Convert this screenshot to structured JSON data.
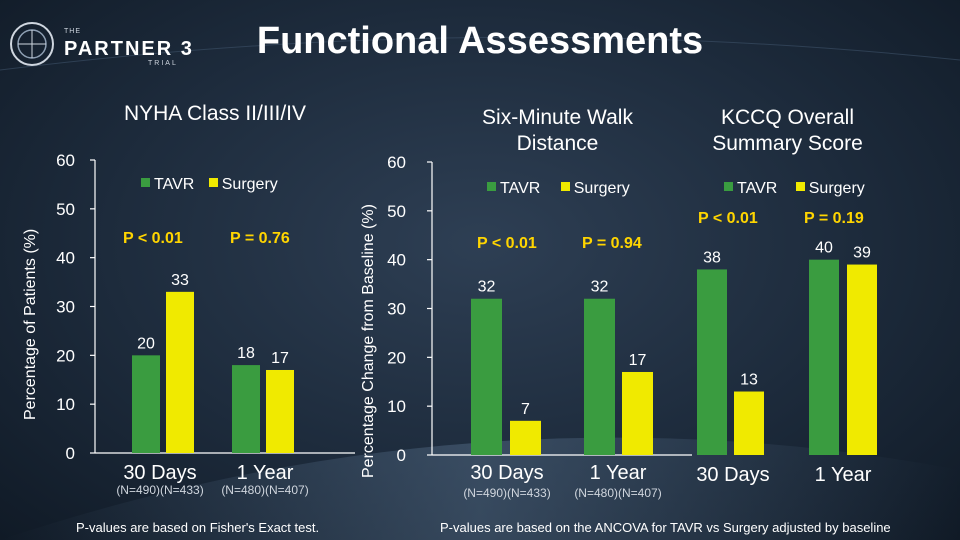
{
  "logo": {
    "line1": "THE",
    "line2": "PARTNER 3",
    "line3": "TRIAL"
  },
  "title": "Functional Assessments",
  "colors": {
    "tavr": "#3a9c40",
    "surgery": "#f0ea00",
    "pvalue": "#ffd500",
    "axis": "#ffffff"
  },
  "legend": {
    "tavr": "TAVR",
    "surgery": "Surgery"
  },
  "footnotes": {
    "left": "P-values are based on Fisher's Exact test.",
    "right": "P-values are based on the ANCOVA for TAVR vs Surgery adjusted by baseline"
  },
  "chart_data": [
    {
      "type": "bar",
      "title": "NYHA Class II/III/IV",
      "ylabel": "Percentage of Patients (%)",
      "ylim": [
        0,
        60
      ],
      "yticks": [
        0,
        10,
        20,
        30,
        40,
        50,
        60
      ],
      "categories": [
        "30 Days",
        "1 Year"
      ],
      "category_sublabels": [
        "(N=490)(N=433)",
        "(N=480)(N=407)"
      ],
      "series": [
        {
          "name": "TAVR",
          "values": [
            20,
            18
          ],
          "labels": [
            "20",
            "18"
          ]
        },
        {
          "name": "Surgery",
          "values": [
            33,
            17
          ],
          "labels": [
            "33",
            "17"
          ]
        }
      ],
      "pvalues": [
        "P < 0.01",
        "P = 0.76"
      ],
      "legend": "top"
    },
    {
      "type": "bar",
      "title": "Six-Minute Walk Distance",
      "ylabel": "Percentage Change from Baseline (%)",
      "ylim": [
        0,
        60
      ],
      "yticks": [
        0,
        10,
        20,
        30,
        40,
        50,
        60
      ],
      "categories": [
        "30 Days",
        "1 Year"
      ],
      "category_sublabels": [
        "(N=490)(N=433)",
        "(N=480)(N=407)"
      ],
      "series": [
        {
          "name": "TAVR",
          "values": [
            32,
            32
          ],
          "labels": [
            "32",
            "32"
          ]
        },
        {
          "name": "Surgery",
          "values": [
            7,
            17
          ],
          "labels": [
            "7",
            "17"
          ]
        }
      ],
      "pvalues": [
        "P < 0.01",
        "P = 0.94"
      ],
      "legend": "top"
    },
    {
      "type": "bar",
      "title": "KCCQ Overall Summary Score",
      "ylim": [
        0,
        60
      ],
      "categories": [
        "30 Days",
        "1 Year"
      ],
      "series": [
        {
          "name": "TAVR",
          "values": [
            38,
            40
          ],
          "labels": [
            "38",
            "40"
          ]
        },
        {
          "name": "Surgery",
          "values": [
            13,
            39
          ],
          "labels": [
            "13",
            "39"
          ]
        }
      ],
      "pvalues": [
        "P < 0.01",
        "P = 0.19"
      ],
      "legend": "top"
    }
  ]
}
